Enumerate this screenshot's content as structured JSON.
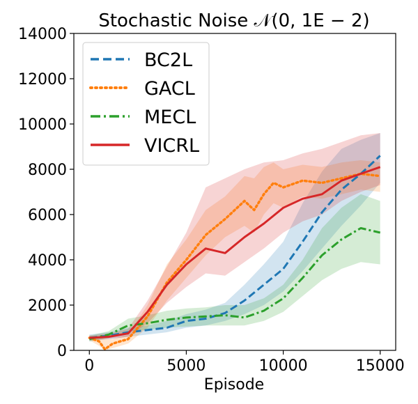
{
  "chart_data": {
    "type": "line",
    "title": "Stochastic Noise 𝒩(0, 1E − 2)",
    "xlabel": "Episode",
    "ylabel": "",
    "xlim": [
      -800,
      15800
    ],
    "ylim": [
      0,
      14000
    ],
    "xticks": [
      0,
      5000,
      10000,
      15000
    ],
    "yticks": [
      0,
      2000,
      4000,
      6000,
      8000,
      10000,
      12000,
      14000
    ],
    "legend_position": "top-left",
    "series": [
      {
        "name": "BC2L",
        "color": "#1f77b4",
        "style": "dashed",
        "x": [
          0,
          1000,
          2000,
          3000,
          4000,
          5000,
          6000,
          7000,
          8000,
          9000,
          10000,
          11000,
          12000,
          13000,
          14000,
          15000
        ],
        "values": [
          550,
          650,
          800,
          900,
          1000,
          1300,
          1400,
          1650,
          2200,
          2900,
          3600,
          4800,
          6100,
          7100,
          7800,
          8600
        ],
        "band_lower": [
          400,
          500,
          600,
          700,
          800,
          1000,
          1100,
          1300,
          1600,
          2000,
          2600,
          3500,
          4500,
          5500,
          6400,
          7400
        ],
        "band_upper": [
          700,
          800,
          1000,
          1100,
          1300,
          1600,
          1800,
          2100,
          2900,
          3800,
          4800,
          6500,
          7900,
          8900,
          9300,
          9600
        ]
      },
      {
        "name": "GACL",
        "color": "#ff7f0e",
        "style": "dotted",
        "x": [
          0,
          500,
          800,
          1200,
          2000,
          3000,
          4000,
          5000,
          6000,
          7000,
          8000,
          8500,
          9000,
          9500,
          10000,
          11000,
          12000,
          13000,
          14000,
          15000
        ],
        "values": [
          550,
          400,
          50,
          300,
          500,
          1500,
          3000,
          4000,
          5100,
          5800,
          6600,
          6200,
          6900,
          7400,
          7200,
          7500,
          7400,
          7600,
          7800,
          7700
        ],
        "band_lower": [
          450,
          200,
          0,
          100,
          300,
          1000,
          2200,
          3200,
          4200,
          5000,
          5500,
          5200,
          6000,
          6500,
          6300,
          6800,
          6700,
          6900,
          7100,
          7000
        ],
        "band_upper": [
          650,
          600,
          500,
          500,
          700,
          2000,
          3800,
          4900,
          6200,
          6800,
          7700,
          7600,
          8100,
          8300,
          8000,
          8200,
          8100,
          8300,
          8400,
          8300
        ]
      },
      {
        "name": "MECL",
        "color": "#2ca02c",
        "style": "dashdot",
        "x": [
          0,
          1000,
          2000,
          3000,
          4000,
          5000,
          6000,
          7000,
          8000,
          9000,
          10000,
          11000,
          12000,
          13000,
          14000,
          15000
        ],
        "values": [
          500,
          700,
          1100,
          1200,
          1350,
          1450,
          1500,
          1550,
          1450,
          1750,
          2300,
          3200,
          4200,
          4900,
          5400,
          5200
        ],
        "band_lower": [
          400,
          550,
          850,
          900,
          1000,
          1050,
          1100,
          1100,
          1100,
          1300,
          1700,
          2400,
          3100,
          3600,
          3900,
          3800
        ],
        "band_upper": [
          650,
          850,
          1400,
          1550,
          1750,
          1850,
          1900,
          2000,
          2000,
          2300,
          2900,
          4000,
          5400,
          6300,
          6900,
          6600
        ]
      },
      {
        "name": "VICRL",
        "color": "#d62728",
        "style": "solid",
        "x": [
          0,
          1000,
          2000,
          3000,
          4000,
          5000,
          6000,
          7000,
          8000,
          9000,
          10000,
          11000,
          12000,
          13000,
          14000,
          15000
        ],
        "values": [
          550,
          600,
          750,
          1700,
          2900,
          3800,
          4500,
          4300,
          5000,
          5600,
          6300,
          6700,
          6900,
          7500,
          7800,
          8100
        ],
        "band_lower": [
          450,
          500,
          600,
          1200,
          2100,
          2800,
          3400,
          3300,
          3900,
          4500,
          5200,
          5700,
          6000,
          6600,
          7000,
          7300
        ],
        "band_upper": [
          650,
          750,
          950,
          2200,
          3700,
          5200,
          7200,
          7600,
          8000,
          8300,
          8400,
          8700,
          8900,
          9200,
          9500,
          9600
        ]
      }
    ]
  }
}
